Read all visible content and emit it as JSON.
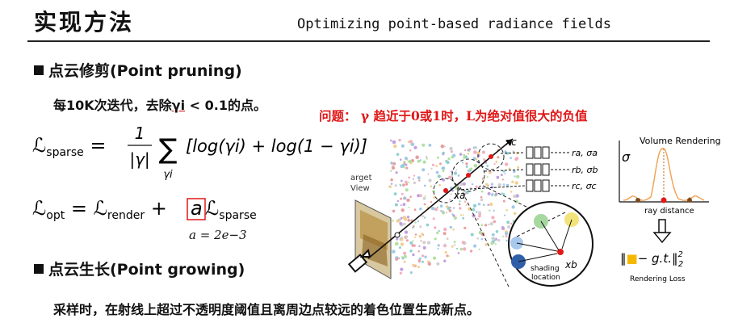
{
  "header": {
    "title_cn": "实现方法",
    "title_en": "Optimizing point-based radiance fields"
  },
  "pruning": {
    "heading": "点云修剪(Point pruning)",
    "desc_prefix": "每10K次迭代，去除",
    "desc_gamma": "γi",
    "desc_suffix": " < 0.1的点。",
    "issue": "问题： γ 趋近于0或1时，L为绝对值很大的负值",
    "formula_sparse_lhs": "ℒsparse =",
    "formula_sparse_frac_num": "1",
    "formula_sparse_frac_den": "|γ|",
    "formula_sparse_sum": "∑",
    "formula_sparse_sum_sub": "γi",
    "formula_sparse_body": "[log(γi) + log(1 − γi)]",
    "formula_opt_lhs": "ℒopt = ℒrender +",
    "formula_opt_a": "a",
    "formula_opt_rhs": "ℒsparse",
    "formula_a_value": "a  =  2e−3"
  },
  "growing": {
    "heading": "点云生长(Point growing)",
    "desc": "采样时，在射线上超过不透明度阈值且离周边点较远的着色位置生成新点。"
  },
  "figure": {
    "target_view_line1": "arget",
    "target_view_line2": "View",
    "xc": "xc",
    "xa": "xa",
    "xb": "xb",
    "ra": "ra, σa",
    "rb": "rb, σb",
    "rc": "rc, σc",
    "shading_line1": "shading",
    "shading_line2": "location",
    "volume_rendering": "Volume Rendering",
    "sigma": "σ",
    "ray_distance": "ray distance",
    "loss_formula": "‖■− g.t.‖²₂",
    "rendering_loss": "Rendering Loss"
  },
  "colors": {
    "accent_red": "#e01818",
    "orange_curve": "#f0a050",
    "gold_square": "#f5b800"
  }
}
